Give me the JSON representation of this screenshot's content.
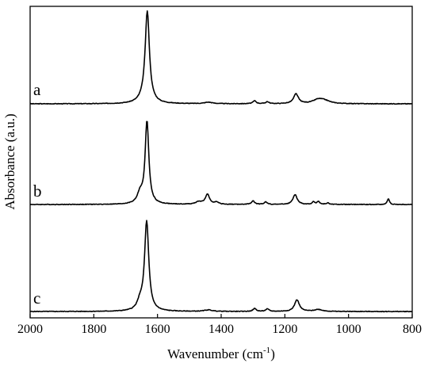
{
  "chart_data": {
    "type": "line",
    "xlabel": "Wavenumber (cm",
    "xlabel_superscript": "-1",
    "xlabel_suffix": ")",
    "ylabel": "Absorbance (a.u.)",
    "xlim": [
      2000,
      800
    ],
    "x_reversed": true,
    "xticks": [
      2000,
      1800,
      1600,
      1400,
      1200,
      1000,
      800
    ],
    "y_tick_labels": false,
    "grid": false,
    "legend": "inline labels at left of each trace",
    "series": [
      {
        "name": "a",
        "baseline": 0,
        "peaks": [
          {
            "center": 1632,
            "height": 0.92,
            "width": 8
          },
          {
            "center": 1640,
            "height": 0.04,
            "width": 20
          },
          {
            "center": 1440,
            "height": 0.015,
            "width": 15
          },
          {
            "center": 1295,
            "height": 0.03,
            "width": 6
          },
          {
            "center": 1255,
            "height": 0.02,
            "width": 6
          },
          {
            "center": 1165,
            "height": 0.1,
            "width": 9
          },
          {
            "center": 1095,
            "height": 0.04,
            "width": 20
          },
          {
            "center": 1075,
            "height": 0.025,
            "width": 20
          }
        ]
      },
      {
        "name": "b",
        "baseline": 0,
        "peaks": [
          {
            "center": 1633,
            "height": 0.85,
            "width": 7
          },
          {
            "center": 1655,
            "height": 0.1,
            "width": 10
          },
          {
            "center": 1443,
            "height": 0.1,
            "width": 8
          },
          {
            "center": 1470,
            "height": 0.025,
            "width": 12
          },
          {
            "center": 1415,
            "height": 0.02,
            "width": 8
          },
          {
            "center": 1300,
            "height": 0.035,
            "width": 6
          },
          {
            "center": 1260,
            "height": 0.025,
            "width": 6
          },
          {
            "center": 1168,
            "height": 0.1,
            "width": 8
          },
          {
            "center": 1110,
            "height": 0.025,
            "width": 5
          },
          {
            "center": 1095,
            "height": 0.03,
            "width": 5
          },
          {
            "center": 1065,
            "height": 0.015,
            "width": 6
          },
          {
            "center": 875,
            "height": 0.06,
            "width": 4
          }
        ]
      },
      {
        "name": "c",
        "baseline": 0,
        "peaks": [
          {
            "center": 1634,
            "height": 0.92,
            "width": 8
          },
          {
            "center": 1655,
            "height": 0.08,
            "width": 10
          },
          {
            "center": 1440,
            "height": 0.015,
            "width": 15
          },
          {
            "center": 1295,
            "height": 0.03,
            "width": 6
          },
          {
            "center": 1255,
            "height": 0.025,
            "width": 6
          },
          {
            "center": 1162,
            "height": 0.12,
            "width": 9
          },
          {
            "center": 1095,
            "height": 0.02,
            "width": 15
          }
        ]
      }
    ]
  }
}
